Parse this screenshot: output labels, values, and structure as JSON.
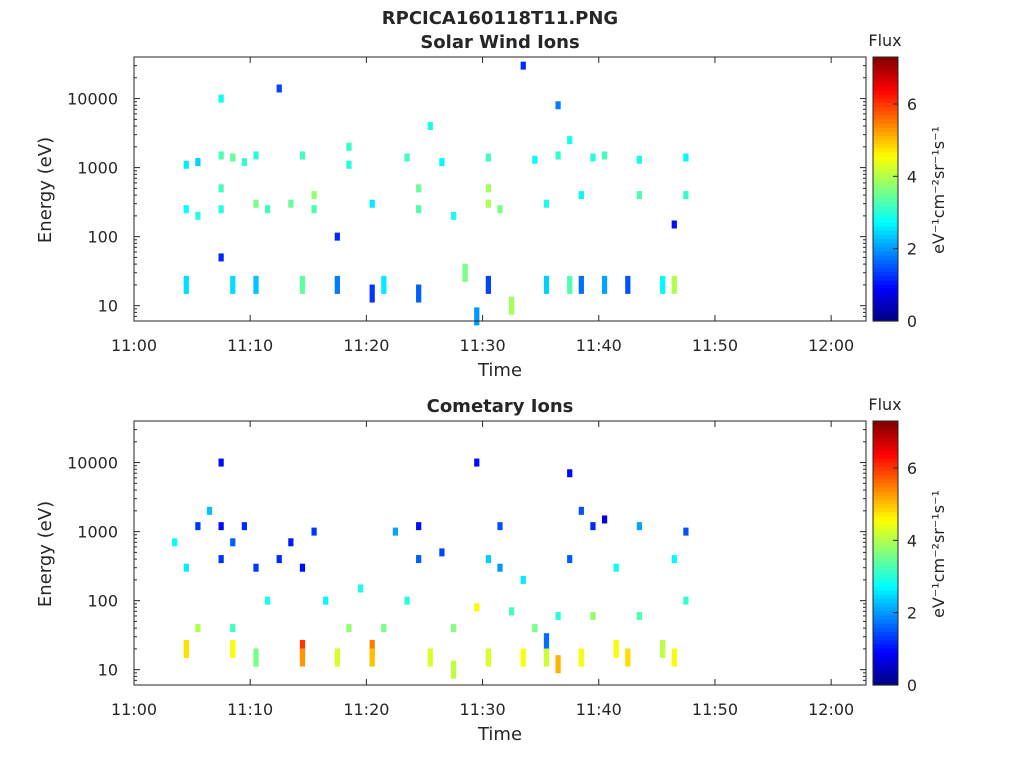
{
  "figure": {
    "title": "RPCICA160118T11.PNG"
  },
  "colormap": {
    "stops": [
      "#00007f",
      "#0000ff",
      "#007fff",
      "#00ffff",
      "#7fff7f",
      "#ffff00",
      "#ff7f00",
      "#ff0000",
      "#7f0000"
    ]
  },
  "chart_data": [
    {
      "type": "heatmap",
      "title": "Solar Wind Ions",
      "xlabel": "Time",
      "ylabel": "Energy (eV)",
      "xlim": [
        "11:00",
        "12:03"
      ],
      "ylim": [
        6,
        40000
      ],
      "yscale": "log",
      "xticks": [
        "11:00",
        "11:10",
        "11:20",
        "11:30",
        "11:40",
        "11:50",
        "12:00"
      ],
      "yticks": [
        "10",
        "100",
        "1000",
        "10000"
      ],
      "colorbar": {
        "label": "Flux",
        "units": "eV⁻¹cm⁻²sr⁻¹s⁻¹",
        "range": [
          0,
          7.3
        ],
        "ticks": [
          "0",
          "2",
          "4",
          "6"
        ]
      },
      "points": [
        [
          "11:04",
          20,
          2.5
        ],
        [
          "11:04",
          250,
          2.8
        ],
        [
          "11:04",
          1100,
          2.6
        ],
        [
          "11:05",
          200,
          3.0
        ],
        [
          "11:05",
          1200,
          2.4
        ],
        [
          "11:07",
          1500,
          3.3
        ],
        [
          "11:07",
          500,
          3.2
        ],
        [
          "11:07",
          250,
          3.0
        ],
        [
          "11:07",
          50,
          1.2
        ],
        [
          "11:07",
          10000,
          2.8
        ],
        [
          "11:08",
          1400,
          3.4
        ],
        [
          "11:08",
          20,
          2.5
        ],
        [
          "11:09",
          1200,
          3.1
        ],
        [
          "11:10",
          300,
          3.6
        ],
        [
          "11:10",
          1500,
          3.0
        ],
        [
          "11:10",
          20,
          2.3
        ],
        [
          "11:11",
          250,
          3.2
        ],
        [
          "11:12",
          14000,
          1.4
        ],
        [
          "11:13",
          300,
          3.5
        ],
        [
          "11:14",
          1500,
          3.2
        ],
        [
          "11:14",
          20,
          3.4
        ],
        [
          "11:15",
          400,
          3.8
        ],
        [
          "11:15",
          250,
          3.3
        ],
        [
          "11:17",
          100,
          1.2
        ],
        [
          "11:17",
          20,
          1.8
        ],
        [
          "11:18",
          2000,
          3.1
        ],
        [
          "11:18",
          1100,
          3.0
        ],
        [
          "11:20",
          300,
          2.6
        ],
        [
          "11:20",
          15,
          1.3
        ],
        [
          "11:21",
          20,
          2.6
        ],
        [
          "11:23",
          1400,
          3.2
        ],
        [
          "11:24",
          500,
          3.5
        ],
        [
          "11:24",
          250,
          3.3
        ],
        [
          "11:24",
          15,
          1.6
        ],
        [
          "11:25",
          4000,
          2.9
        ],
        [
          "11:26",
          1200,
          2.7
        ],
        [
          "11:27",
          200,
          2.9
        ],
        [
          "11:28",
          30,
          3.6
        ],
        [
          "11:29",
          7,
          2.0
        ],
        [
          "11:30",
          500,
          3.9
        ],
        [
          "11:30",
          300,
          4.0
        ],
        [
          "11:30",
          1400,
          3.2
        ],
        [
          "11:30",
          20,
          1.4
        ],
        [
          "11:31",
          250,
          3.6
        ],
        [
          "11:32",
          10,
          3.9
        ],
        [
          "11:33",
          30000,
          1.2
        ],
        [
          "11:34",
          1300,
          2.8
        ],
        [
          "11:35",
          300,
          2.9
        ],
        [
          "11:35",
          20,
          2.4
        ],
        [
          "11:36",
          8000,
          1.8
        ],
        [
          "11:36",
          1500,
          3.1
        ],
        [
          "11:37",
          2500,
          2.9
        ],
        [
          "11:37",
          20,
          3.3
        ],
        [
          "11:38",
          20,
          1.7
        ],
        [
          "11:38",
          400,
          2.7
        ],
        [
          "11:39",
          1400,
          3.0
        ],
        [
          "11:40",
          1500,
          3.2
        ],
        [
          "11:40",
          20,
          2.1
        ],
        [
          "11:42",
          20,
          1.5
        ],
        [
          "11:43",
          1300,
          2.9
        ],
        [
          "11:43",
          400,
          3.3
        ],
        [
          "11:45",
          20,
          2.7
        ],
        [
          "11:46",
          150,
          1.0
        ],
        [
          "11:46",
          20,
          4.0
        ],
        [
          "11:47",
          400,
          3.1
        ],
        [
          "11:47",
          1400,
          2.7
        ]
      ]
    },
    {
      "type": "heatmap",
      "title": "Cometary Ions",
      "xlabel": "Time",
      "ylabel": "Energy (eV)",
      "xlim": [
        "11:00",
        "12:03"
      ],
      "ylim": [
        6,
        40000
      ],
      "yscale": "log",
      "xticks": [
        "11:00",
        "11:10",
        "11:20",
        "11:30",
        "11:40",
        "11:50",
        "12:00"
      ],
      "yticks": [
        "10",
        "100",
        "1000",
        "10000"
      ],
      "colorbar": {
        "label": "Flux",
        "units": "eV⁻¹cm⁻²sr⁻¹s⁻¹",
        "range": [
          0,
          7.3
        ],
        "ticks": [
          "0",
          "2",
          "4",
          "6"
        ]
      },
      "points": [
        [
          "11:03",
          700,
          2.8
        ],
        [
          "11:04",
          20,
          4.8
        ],
        [
          "11:04",
          300,
          2.6
        ],
        [
          "11:05",
          40,
          4.0
        ],
        [
          "11:05",
          1200,
          1.3
        ],
        [
          "11:06",
          2000,
          2.3
        ],
        [
          "11:07",
          1200,
          1.0
        ],
        [
          "11:07",
          400,
          1.3
        ],
        [
          "11:07",
          10000,
          1.0
        ],
        [
          "11:08",
          20,
          4.5
        ],
        [
          "11:08",
          40,
          3.2
        ],
        [
          "11:08",
          700,
          1.6
        ],
        [
          "11:09",
          1200,
          1.2
        ],
        [
          "11:10",
          15,
          3.6
        ],
        [
          "11:10",
          300,
          1.3
        ],
        [
          "11:11",
          100,
          2.9
        ],
        [
          "11:12",
          400,
          1.2
        ],
        [
          "11:13",
          700,
          1.1
        ],
        [
          "11:14",
          20,
          6.0
        ],
        [
          "11:14",
          15,
          5.3
        ],
        [
          "11:14",
          300,
          1.0
        ],
        [
          "11:15",
          1000,
          1.3
        ],
        [
          "11:16",
          100,
          2.7
        ],
        [
          "11:17",
          15,
          4.3
        ],
        [
          "11:18",
          40,
          3.8
        ],
        [
          "11:19",
          150,
          2.9
        ],
        [
          "11:20",
          20,
          5.5
        ],
        [
          "11:20",
          15,
          5.0
        ],
        [
          "11:21",
          40,
          3.6
        ],
        [
          "11:22",
          1000,
          2.1
        ],
        [
          "11:23",
          100,
          3.0
        ],
        [
          "11:24",
          400,
          1.6
        ],
        [
          "11:24",
          1200,
          1.0
        ],
        [
          "11:25",
          15,
          4.3
        ],
        [
          "11:26",
          500,
          1.4
        ],
        [
          "11:27",
          40,
          3.7
        ],
        [
          "11:27",
          10,
          4.1
        ],
        [
          "11:29",
          80,
          4.6
        ],
        [
          "11:29",
          10000,
          1.0
        ],
        [
          "11:30",
          400,
          2.4
        ],
        [
          "11:30",
          15,
          4.3
        ],
        [
          "11:31",
          300,
          2.0
        ],
        [
          "11:31",
          1200,
          1.5
        ],
        [
          "11:32",
          70,
          3.2
        ],
        [
          "11:33",
          200,
          2.6
        ],
        [
          "11:33",
          15,
          4.5
        ],
        [
          "11:34",
          40,
          3.6
        ],
        [
          "11:35",
          25,
          1.7
        ],
        [
          "11:35",
          15,
          4.2
        ],
        [
          "11:36",
          60,
          3.0
        ],
        [
          "11:36",
          12,
          5.1
        ],
        [
          "11:37",
          400,
          1.6
        ],
        [
          "11:37",
          7000,
          1.0
        ],
        [
          "11:38",
          15,
          4.5
        ],
        [
          "11:38",
          2000,
          1.5
        ],
        [
          "11:39",
          60,
          3.8
        ],
        [
          "11:39",
          1200,
          1.2
        ],
        [
          "11:40",
          1500,
          0.7
        ],
        [
          "11:41",
          20,
          4.6
        ],
        [
          "11:41",
          300,
          2.8
        ],
        [
          "11:42",
          15,
          4.8
        ],
        [
          "11:43",
          60,
          3.3
        ],
        [
          "11:43",
          1200,
          2.1
        ],
        [
          "11:45",
          20,
          4.1
        ],
        [
          "11:46",
          400,
          2.7
        ],
        [
          "11:46",
          15,
          4.5
        ],
        [
          "11:47",
          100,
          3.1
        ],
        [
          "11:47",
          1000,
          1.5
        ]
      ]
    }
  ]
}
